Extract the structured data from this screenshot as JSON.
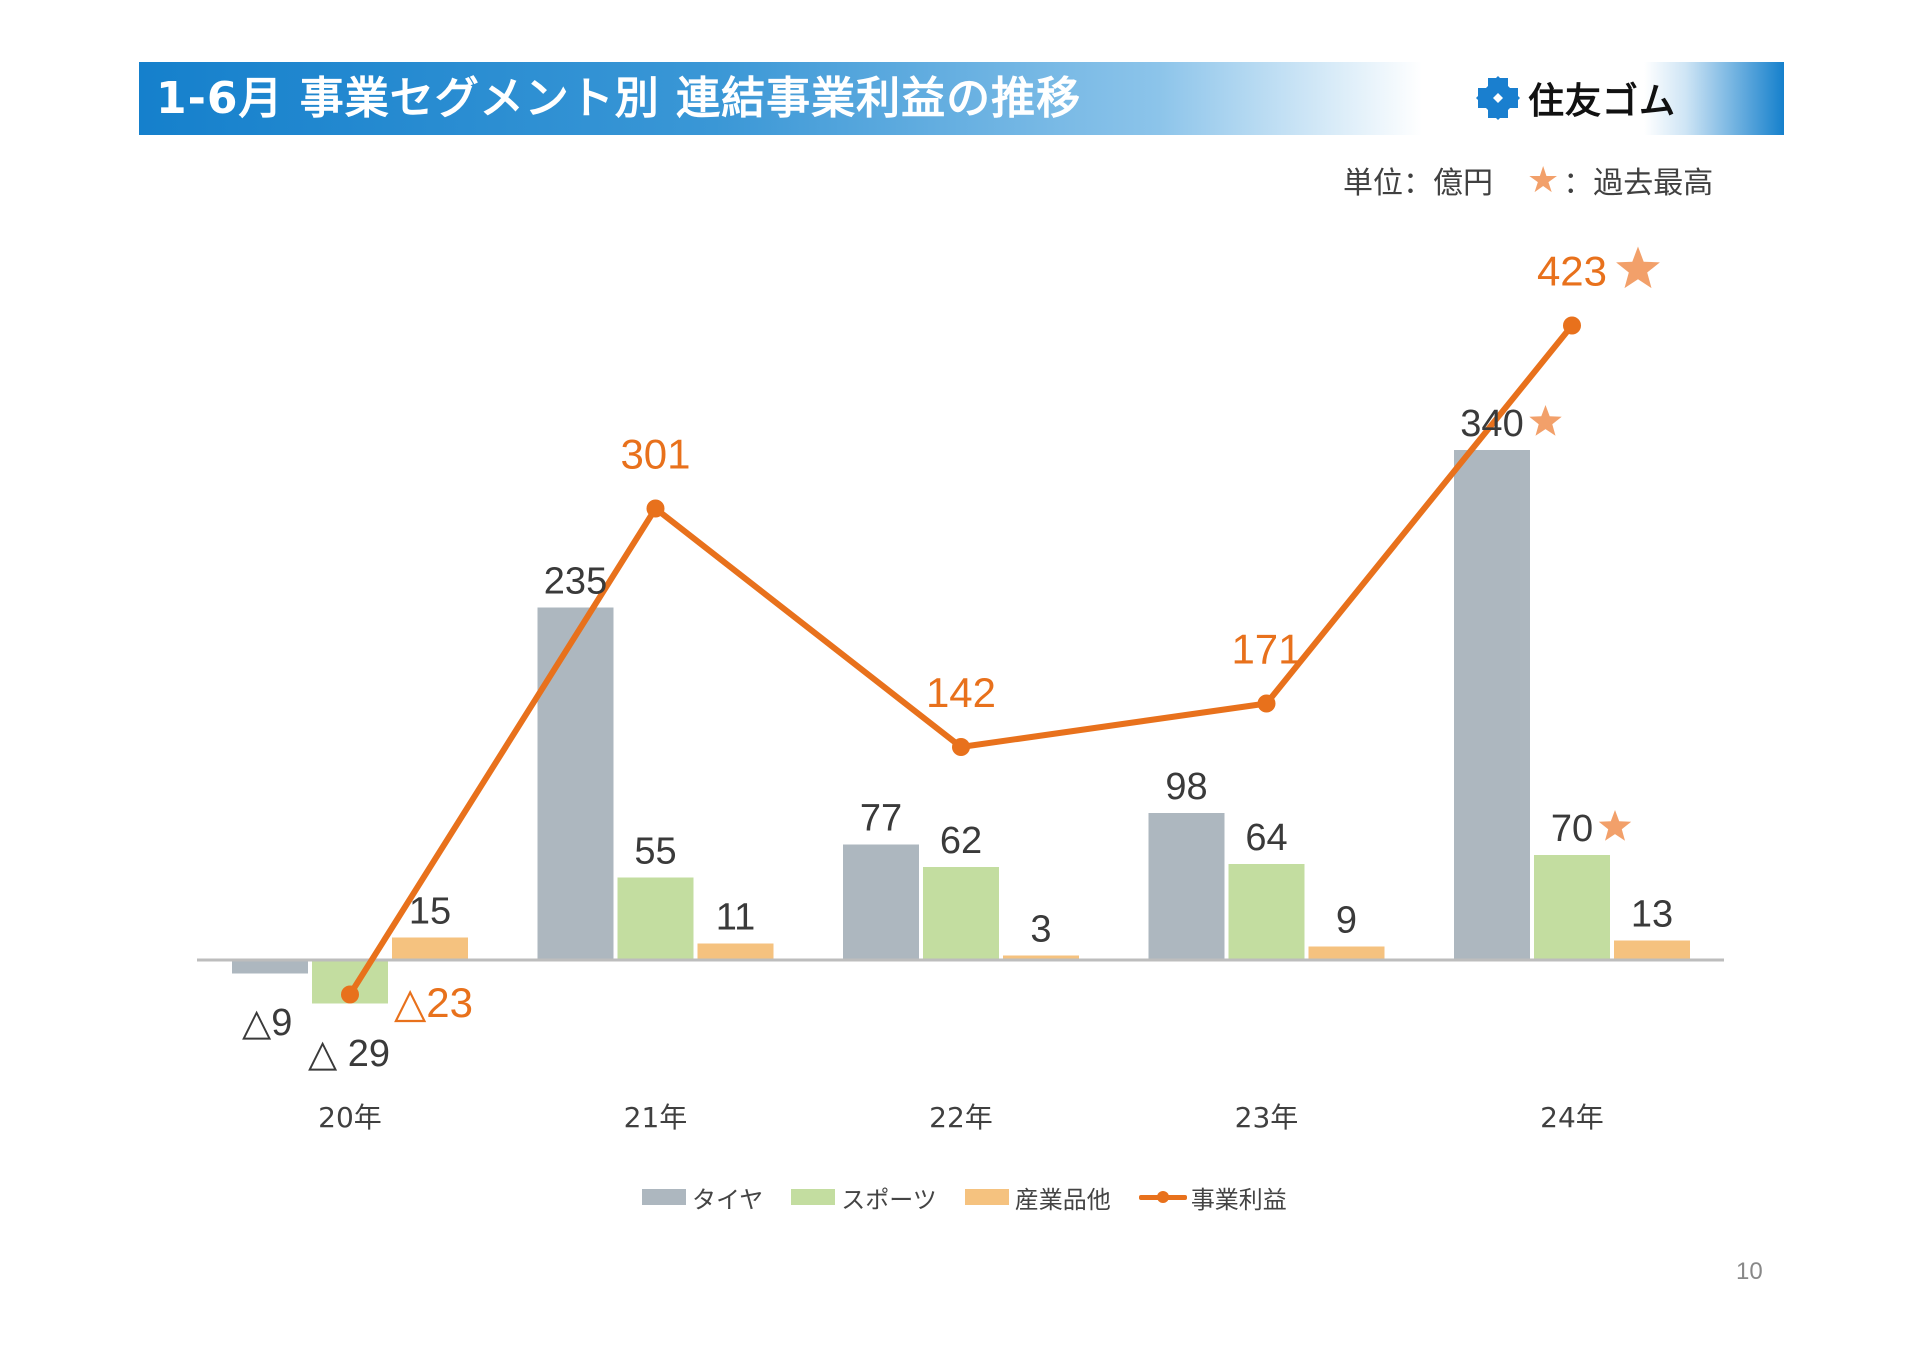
{
  "header": {
    "title": "1-6月 事業セグメント別 連結事業利益の推移",
    "logo_text": "住友ゴム",
    "logo_icon": "diamond-logo-icon"
  },
  "unit_note": {
    "unit": "単位：億円",
    "star_icon": "★",
    "star_meaning": "：過去最高"
  },
  "page_number": "10",
  "colors": {
    "tire": "#adb7bf",
    "sports": "#c3dda0",
    "industrial": "#f5c27f",
    "business_profit": "#e8711c",
    "star": "#f2a06a",
    "header_blue": "#1580cc"
  },
  "chart_data": {
    "type": "bar",
    "title": "1-6月 事業セグメント別 連結事業利益の推移",
    "xlabel": "",
    "ylabel": "億円",
    "categories": [
      "20年",
      "21年",
      "22年",
      "23年",
      "24年"
    ],
    "series": [
      {
        "name": "タイヤ",
        "type": "bar",
        "values": [
          -9,
          235,
          77,
          98,
          340
        ],
        "labels": [
          "△9",
          "235",
          "77",
          "98",
          "340"
        ],
        "record_high": [
          false,
          false,
          false,
          false,
          true
        ]
      },
      {
        "name": "スポーツ",
        "type": "bar",
        "values": [
          -29,
          55,
          62,
          64,
          70
        ],
        "labels": [
          "△ 29",
          "55",
          "62",
          "64",
          "70"
        ],
        "record_high": [
          false,
          false,
          false,
          false,
          true
        ]
      },
      {
        "name": "産業品他",
        "type": "bar",
        "values": [
          15,
          11,
          3,
          9,
          13
        ],
        "labels": [
          "15",
          "11",
          "3",
          "9",
          "13"
        ],
        "record_high": [
          false,
          false,
          false,
          false,
          false
        ]
      },
      {
        "name": "事業利益",
        "type": "line",
        "values": [
          -23,
          301,
          142,
          171,
          423
        ],
        "labels": [
          "△23",
          "301",
          "142",
          "171",
          "423"
        ],
        "record_high": [
          false,
          false,
          false,
          false,
          true
        ]
      }
    ],
    "ylim": [
      -40,
      440
    ],
    "grid": false,
    "legend": {
      "position": "bottom-center",
      "entries": [
        "タイヤ",
        "スポーツ",
        "産業品他",
        "事業利益"
      ]
    },
    "record_marker": "★"
  }
}
